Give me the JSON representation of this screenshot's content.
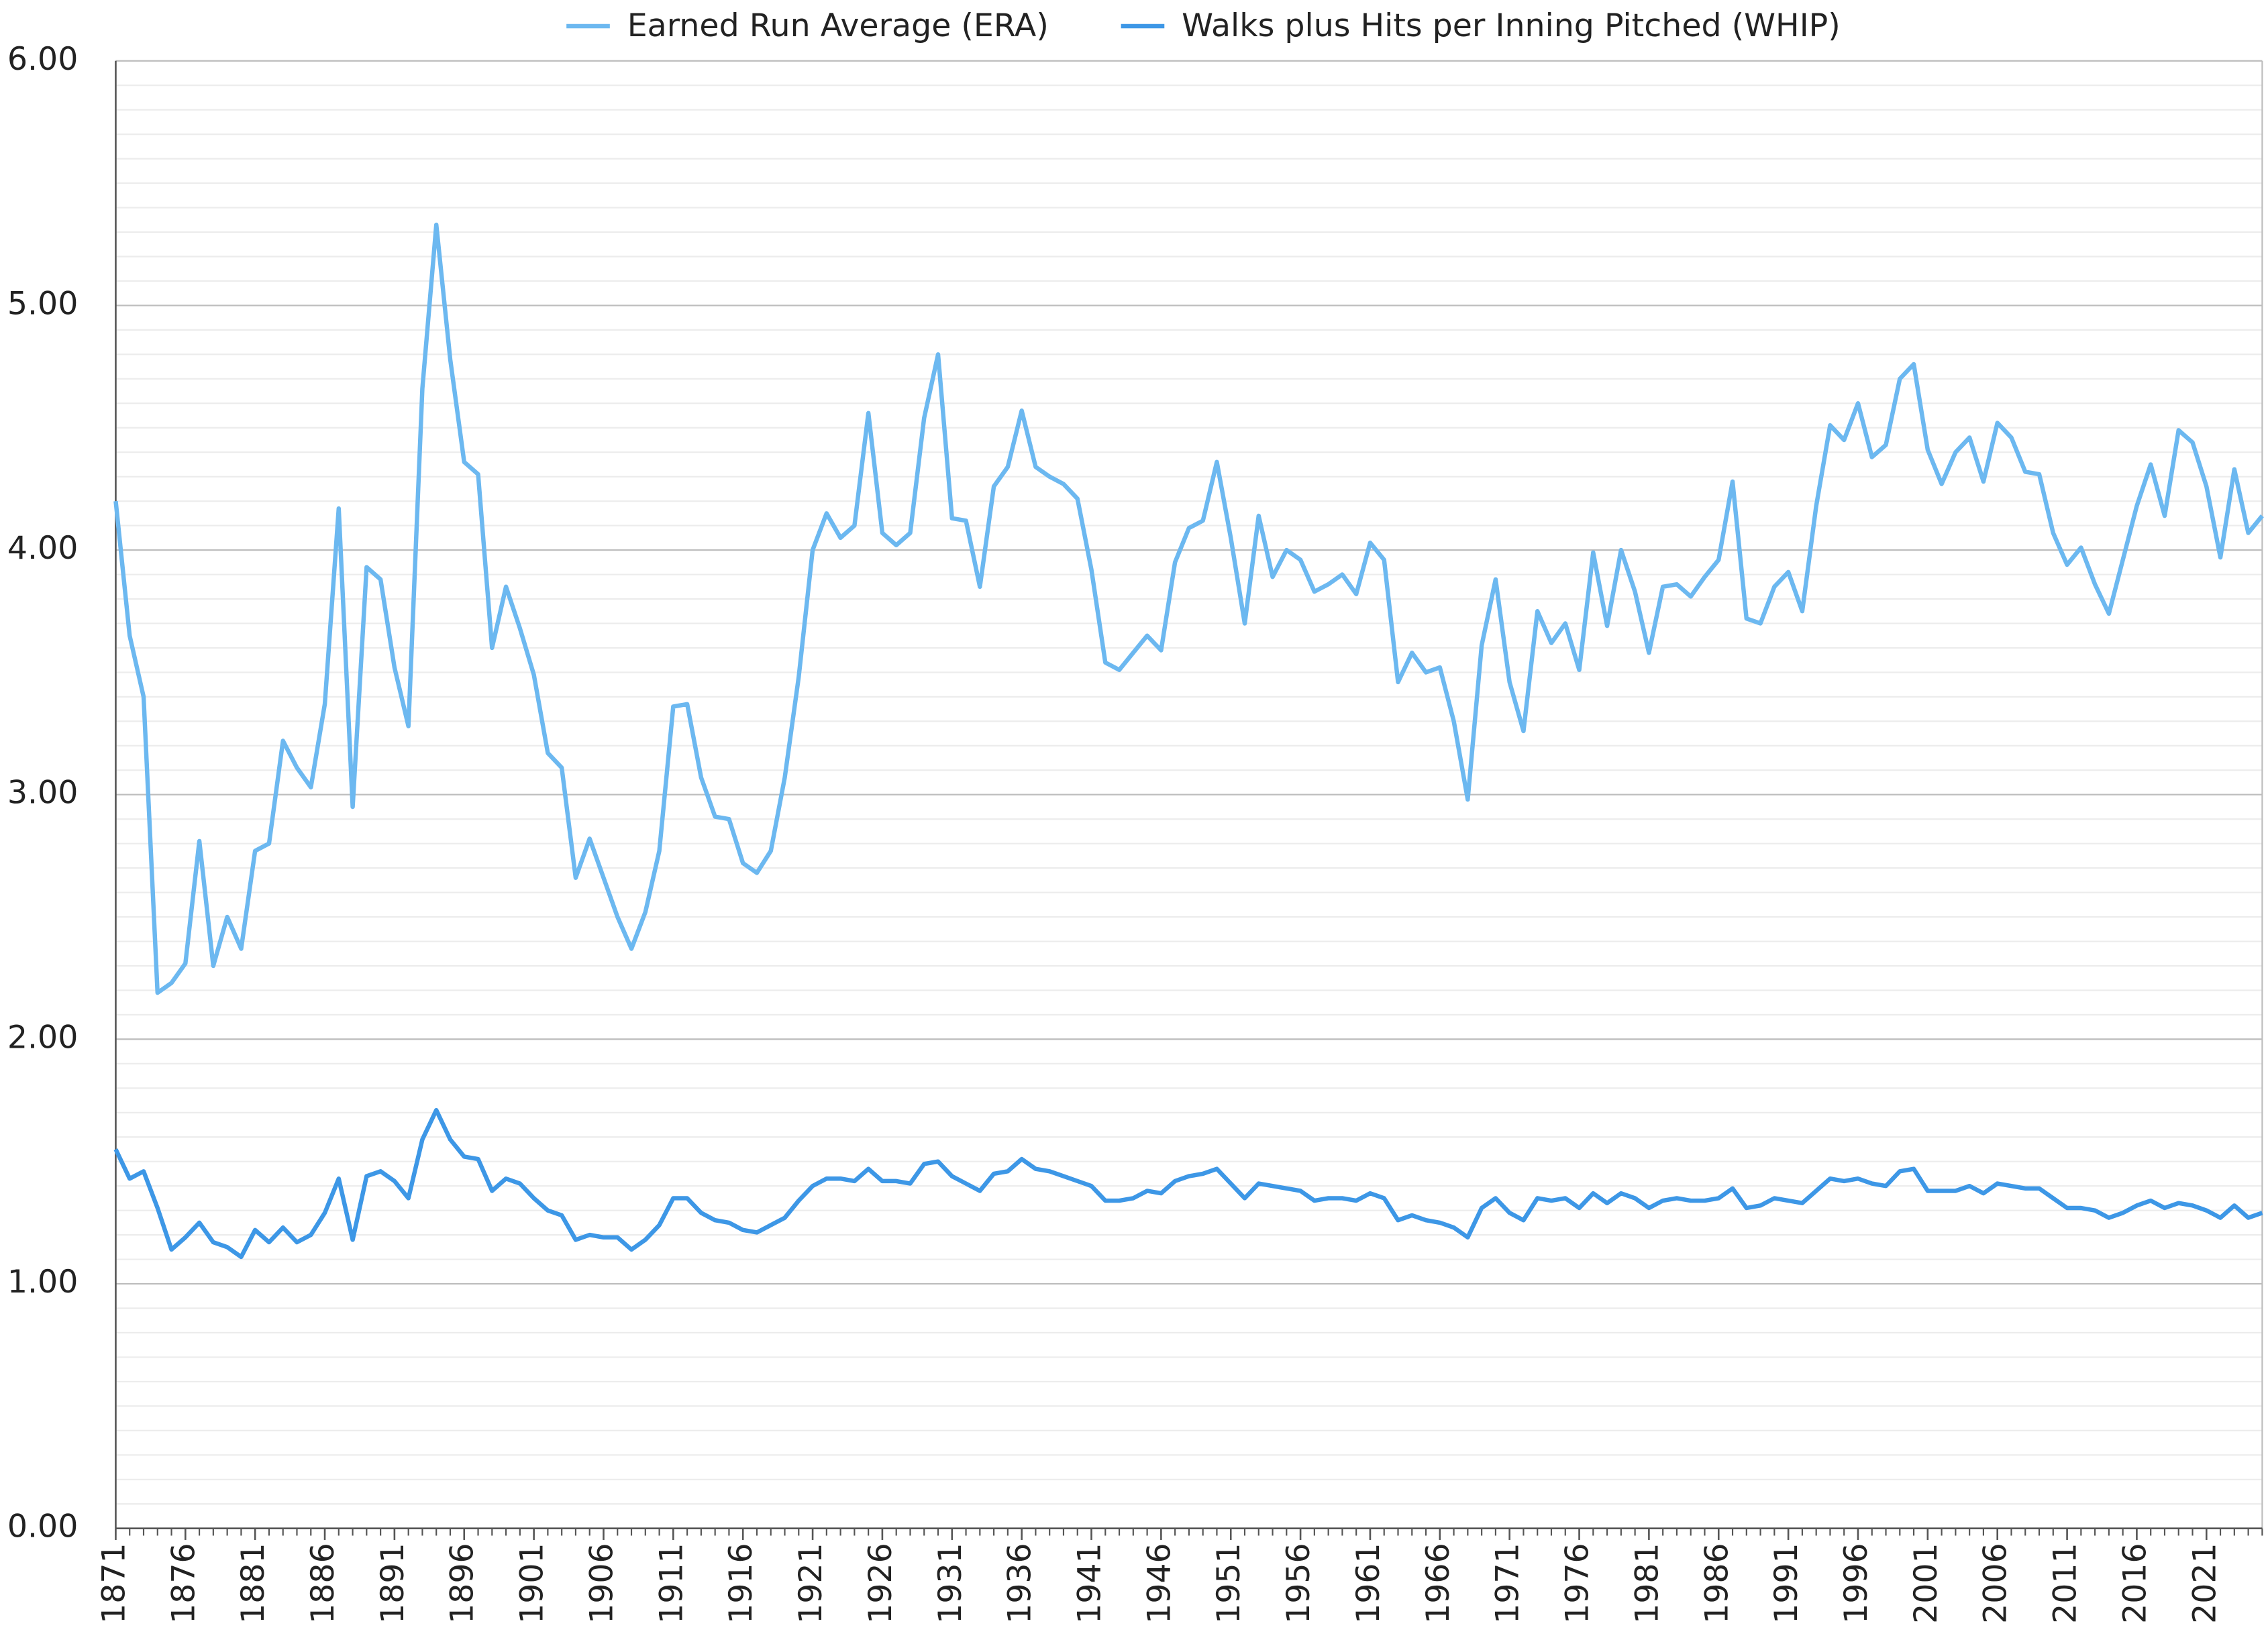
{
  "chart_data": {
    "type": "line",
    "x": [
      1871,
      1872,
      1873,
      1874,
      1875,
      1876,
      1877,
      1878,
      1879,
      1880,
      1881,
      1882,
      1883,
      1884,
      1885,
      1886,
      1887,
      1888,
      1889,
      1890,
      1891,
      1892,
      1893,
      1894,
      1895,
      1896,
      1897,
      1898,
      1899,
      1900,
      1901,
      1902,
      1903,
      1904,
      1905,
      1906,
      1907,
      1908,
      1909,
      1910,
      1911,
      1912,
      1913,
      1914,
      1915,
      1916,
      1917,
      1918,
      1919,
      1920,
      1921,
      1922,
      1923,
      1924,
      1925,
      1926,
      1927,
      1928,
      1929,
      1930,
      1931,
      1932,
      1933,
      1934,
      1935,
      1936,
      1937,
      1938,
      1939,
      1940,
      1941,
      1942,
      1943,
      1944,
      1945,
      1946,
      1947,
      1948,
      1949,
      1950,
      1951,
      1952,
      1953,
      1954,
      1955,
      1956,
      1957,
      1958,
      1959,
      1960,
      1961,
      1962,
      1963,
      1964,
      1965,
      1966,
      1967,
      1968,
      1969,
      1970,
      1971,
      1972,
      1973,
      1974,
      1975,
      1976,
      1977,
      1978,
      1979,
      1980,
      1981,
      1982,
      1983,
      1984,
      1985,
      1986,
      1987,
      1988,
      1989,
      1990,
      1991,
      1992,
      1993,
      1994,
      1995,
      1996,
      1997,
      1998,
      1999,
      2000,
      2001,
      2002,
      2003,
      2004,
      2005,
      2006,
      2007,
      2008,
      2009,
      2010,
      2011,
      2012,
      2013,
      2014,
      2015,
      2016,
      2017,
      2018,
      2019,
      2020,
      2021,
      2022,
      2023,
      2024,
      2025
    ],
    "series": [
      {
        "name": "Earned Run Average (ERA)",
        "color": "#6cb8f0",
        "values": [
          4.2,
          3.65,
          3.4,
          2.19,
          2.23,
          2.31,
          2.81,
          2.3,
          2.5,
          2.37,
          2.77,
          2.8,
          3.22,
          3.11,
          3.03,
          3.37,
          4.17,
          2.95,
          3.93,
          3.88,
          3.52,
          3.28,
          4.66,
          5.33,
          4.78,
          4.36,
          4.31,
          3.6,
          3.85,
          3.68,
          3.49,
          3.17,
          3.11,
          2.66,
          2.82,
          2.66,
          2.5,
          2.37,
          2.52,
          2.77,
          3.36,
          3.37,
          3.07,
          2.91,
          2.9,
          2.72,
          2.68,
          2.77,
          3.07,
          3.48,
          4.0,
          4.15,
          4.05,
          4.1,
          4.56,
          4.07,
          4.02,
          4.07,
          4.54,
          4.8,
          4.13,
          4.12,
          3.85,
          4.26,
          4.34,
          4.57,
          4.34,
          4.3,
          4.27,
          4.21,
          3.92,
          3.54,
          3.51,
          3.58,
          3.65,
          3.59,
          3.95,
          4.09,
          4.12,
          4.36,
          4.05,
          3.7,
          4.14,
          3.89,
          4.0,
          3.96,
          3.83,
          3.86,
          3.9,
          3.82,
          4.03,
          3.96,
          3.46,
          3.58,
          3.5,
          3.52,
          3.3,
          2.98,
          3.61,
          3.88,
          3.46,
          3.26,
          3.75,
          3.62,
          3.7,
          3.51,
          3.99,
          3.69,
          4.0,
          3.83,
          3.58,
          3.85,
          3.86,
          3.81,
          3.89,
          3.96,
          4.28,
          3.72,
          3.7,
          3.85,
          3.91,
          3.75,
          4.18,
          4.51,
          4.45,
          4.6,
          4.38,
          4.43,
          4.7,
          4.76,
          4.41,
          4.27,
          4.4,
          4.46,
          4.28,
          4.52,
          4.46,
          4.32,
          4.31,
          4.07,
          3.94,
          4.01,
          3.86,
          3.74,
          3.96,
          4.18,
          4.35,
          4.14,
          4.49,
          4.44,
          4.26,
          3.97,
          4.33,
          4.07,
          4.14
        ]
      },
      {
        "name": "Walks plus Hits per Inning Pitched (WHIP)",
        "color": "#3d97e6",
        "values": [
          1.55,
          1.43,
          1.46,
          1.31,
          1.14,
          1.19,
          1.25,
          1.17,
          1.15,
          1.11,
          1.22,
          1.17,
          1.23,
          1.17,
          1.2,
          1.29,
          1.43,
          1.18,
          1.44,
          1.46,
          1.42,
          1.35,
          1.59,
          1.71,
          1.59,
          1.52,
          1.51,
          1.38,
          1.43,
          1.41,
          1.35,
          1.3,
          1.28,
          1.18,
          1.2,
          1.19,
          1.19,
          1.14,
          1.18,
          1.24,
          1.35,
          1.35,
          1.29,
          1.26,
          1.25,
          1.22,
          1.21,
          1.24,
          1.27,
          1.34,
          1.4,
          1.43,
          1.43,
          1.42,
          1.47,
          1.42,
          1.42,
          1.41,
          1.49,
          1.5,
          1.44,
          1.41,
          1.38,
          1.45,
          1.46,
          1.51,
          1.47,
          1.46,
          1.44,
          1.42,
          1.4,
          1.34,
          1.34,
          1.35,
          1.38,
          1.37,
          1.42,
          1.44,
          1.45,
          1.47,
          1.41,
          1.35,
          1.41,
          1.4,
          1.39,
          1.38,
          1.34,
          1.35,
          1.35,
          1.34,
          1.37,
          1.35,
          1.26,
          1.28,
          1.26,
          1.25,
          1.23,
          1.19,
          1.31,
          1.35,
          1.29,
          1.26,
          1.35,
          1.34,
          1.35,
          1.31,
          1.37,
          1.33,
          1.37,
          1.35,
          1.31,
          1.34,
          1.35,
          1.34,
          1.34,
          1.35,
          1.39,
          1.31,
          1.32,
          1.35,
          1.34,
          1.33,
          1.38,
          1.43,
          1.42,
          1.43,
          1.41,
          1.4,
          1.46,
          1.47,
          1.38,
          1.38,
          1.38,
          1.4,
          1.37,
          1.41,
          1.4,
          1.39,
          1.39,
          1.35,
          1.31,
          1.31,
          1.3,
          1.27,
          1.29,
          1.32,
          1.34,
          1.31,
          1.33,
          1.32,
          1.3,
          1.27,
          1.32,
          1.27,
          1.29
        ]
      }
    ],
    "xlim": [
      1871,
      2025
    ],
    "xticks": [
      1871,
      1876,
      1881,
      1886,
      1891,
      1896,
      1901,
      1906,
      1911,
      1916,
      1921,
      1926,
      1931,
      1936,
      1941,
      1946,
      1951,
      1956,
      1961,
      1966,
      1971,
      1976,
      1981,
      1986,
      1991,
      1996,
      2001,
      2006,
      2011,
      2016,
      2021
    ],
    "ylim": [
      0,
      6
    ],
    "yticks": [
      {
        "value": 0,
        "label": "0.00"
      },
      {
        "value": 1,
        "label": "1.00"
      },
      {
        "value": 2,
        "label": "2.00"
      },
      {
        "value": 3,
        "label": "3.00"
      },
      {
        "value": 4,
        "label": "4.00"
      },
      {
        "value": 5,
        "label": "5.00"
      },
      {
        "value": 6,
        "label": "6.00"
      }
    ],
    "grid": true,
    "minor_grid_step": 0.1,
    "legend": "top"
  }
}
